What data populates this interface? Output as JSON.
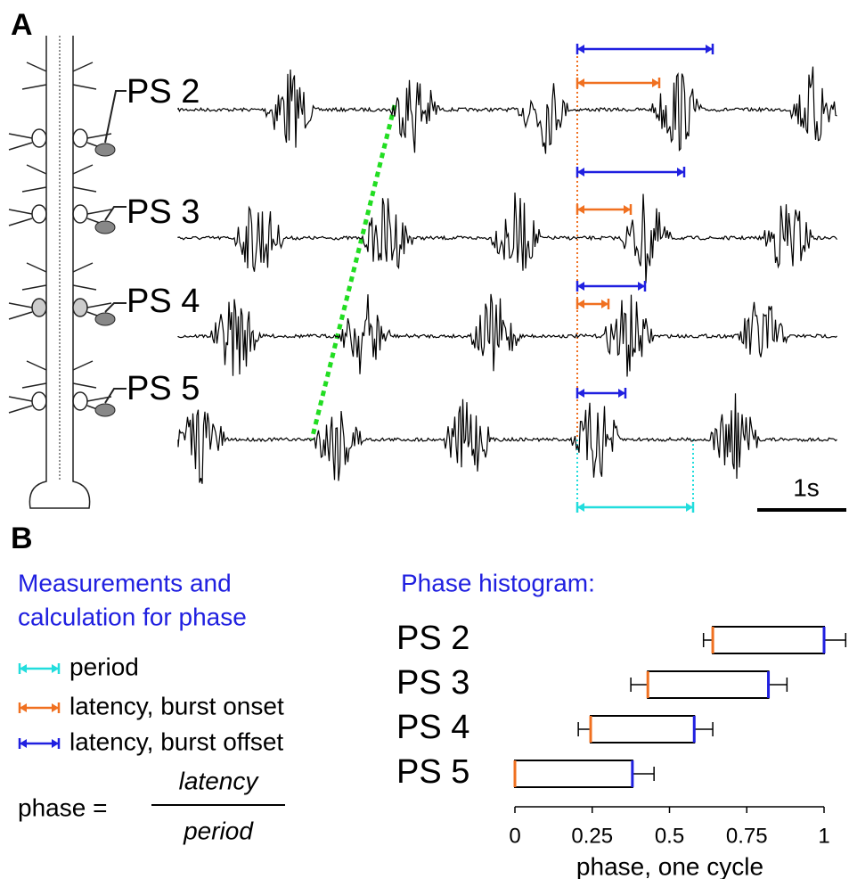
{
  "panel_a": {
    "label": "A",
    "traces": [
      "PS 2",
      "PS 3",
      "PS 4",
      "PS 5"
    ],
    "scale_bar": "1s"
  },
  "panel_b": {
    "label": "B",
    "legend_title": [
      "Measurements and",
      "calculation for phase"
    ],
    "legend": [
      "period",
      "latency, burst onset",
      "latency, burst offset"
    ],
    "formula": {
      "lhs": "phase =",
      "numerator": "latency",
      "denominator": "period"
    }
  },
  "chart_data": {
    "type": "phase_histogram",
    "title": "Phase histogram:",
    "categories": [
      "PS 2",
      "PS 3",
      "PS 4",
      "PS 5"
    ],
    "onset": [
      0.64,
      0.43,
      0.245,
      0
    ],
    "onset_error": [
      0.03,
      0.055,
      0.04,
      0
    ],
    "offset": [
      1.0,
      0.82,
      0.58,
      0.38
    ],
    "offset_error": [
      0.07,
      0.06,
      0.06,
      0.07
    ],
    "onset_color": "#f07020",
    "offset_color": "#2020e0",
    "xlim": [
      0,
      1
    ],
    "xticks": [
      0,
      0.25,
      0.5,
      0.75,
      1
    ],
    "xlabel": "phase, one cycle"
  }
}
